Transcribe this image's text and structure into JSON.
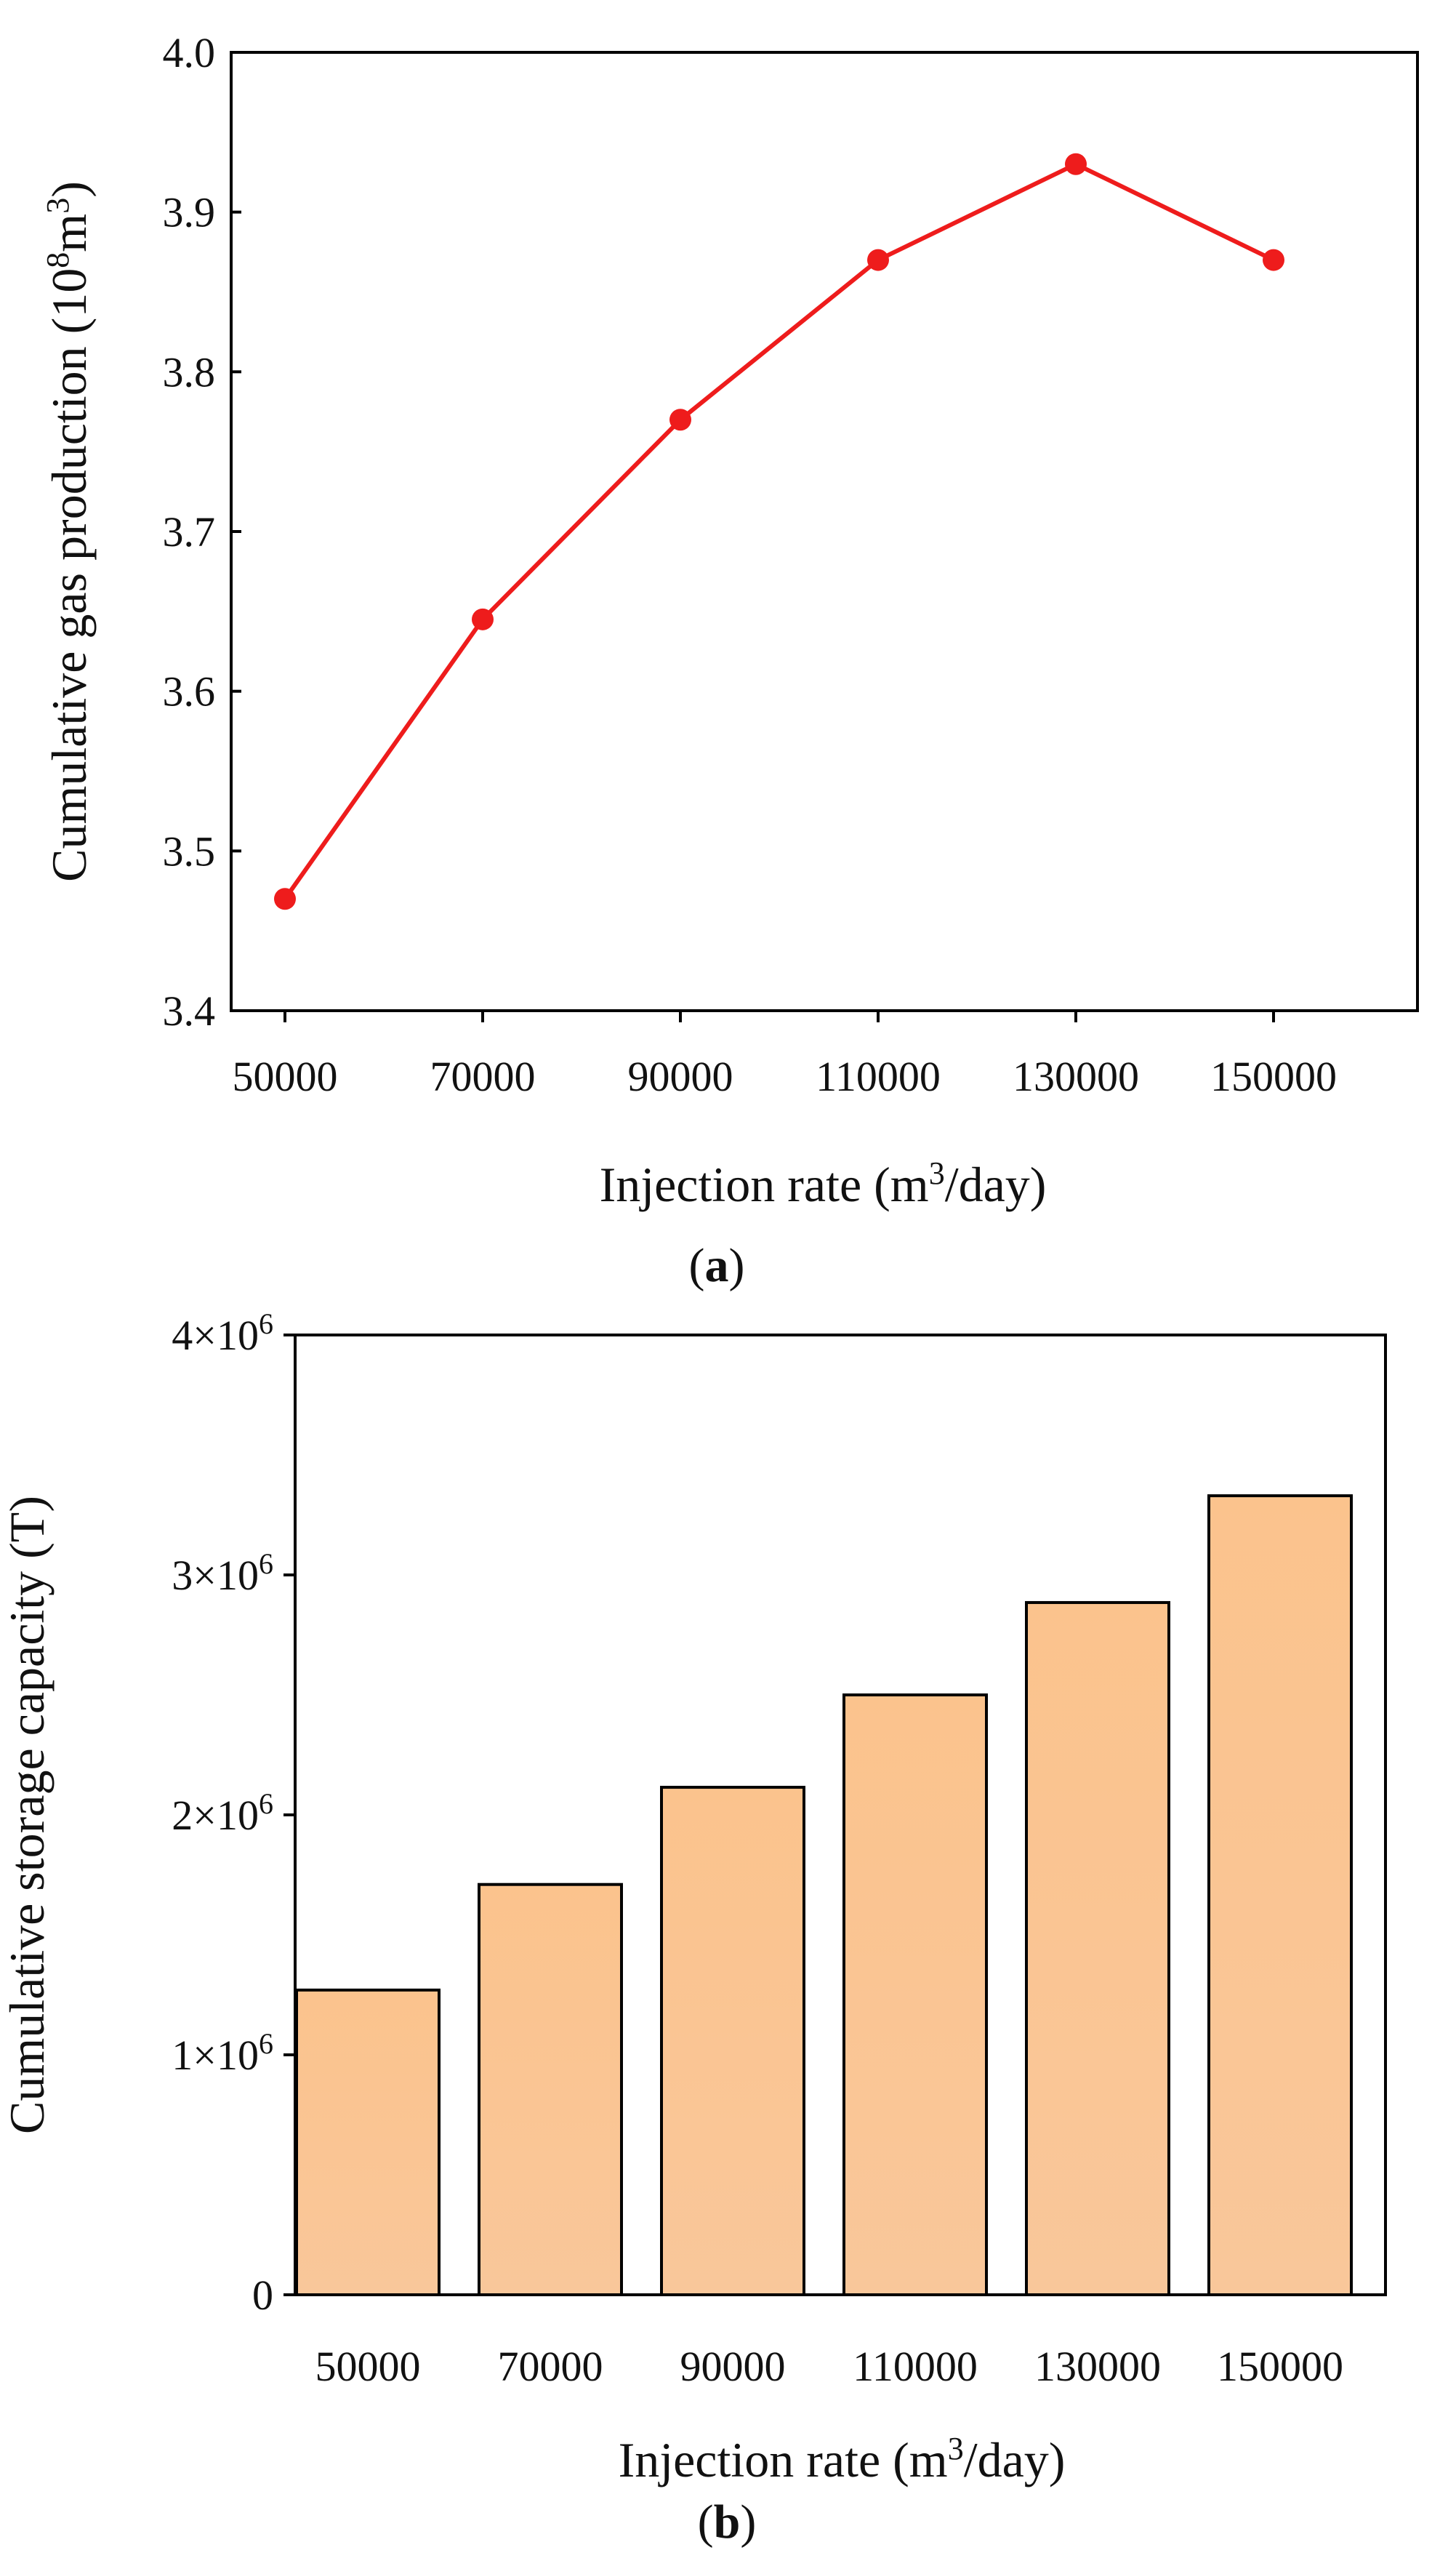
{
  "figure_labels": {
    "a": "a",
    "b": "b"
  },
  "chart_data": [
    {
      "id": "a",
      "type": "line",
      "title": "",
      "xlabel": {
        "main": "Injection rate (m",
        "sup": "3",
        "end": "/day)"
      },
      "ylabel": {
        "main": "Cumulative gas production (10",
        "sup1": "8",
        "mid": "m",
        "sup2": "3",
        "end": ")"
      },
      "categories": [
        "50000",
        "70000",
        "90000",
        "110000",
        "130000",
        "150000"
      ],
      "series": [
        {
          "name": "Cumulative gas production",
          "color": "#ee1c1c",
          "values": [
            3.47,
            3.645,
            3.77,
            3.87,
            3.93,
            3.87
          ]
        }
      ],
      "ylim": [
        3.4,
        4.0
      ],
      "yticks": [
        {
          "value": 3.4,
          "label": "3.4"
        },
        {
          "value": 3.5,
          "label": "3.5"
        },
        {
          "value": 3.6,
          "label": "3.6"
        },
        {
          "value": 3.7,
          "label": "3.7"
        },
        {
          "value": 3.8,
          "label": "3.8"
        },
        {
          "value": 3.9,
          "label": "3.9"
        },
        {
          "value": 4.0,
          "label": "4.0"
        }
      ],
      "grid": false,
      "legend": "none"
    },
    {
      "id": "b",
      "type": "bar",
      "title": "",
      "xlabel": {
        "main": "Injection rate (m",
        "sup": "3",
        "end": "/day)"
      },
      "ylabel": "Cumulative storage capacity (T)",
      "categories": [
        "50000",
        "70000",
        "90000",
        "110000",
        "130000",
        "150000"
      ],
      "series": [
        {
          "name": "Cumulative storage capacity",
          "color": "#fbc591",
          "values": [
            1270000,
            1710000,
            2115000,
            2500000,
            2885000,
            3330000
          ]
        }
      ],
      "ylim": [
        0,
        4000000
      ],
      "yticks": [
        {
          "value": 0,
          "label": "0"
        },
        {
          "value": 1000000,
          "label": "1×10",
          "exp": "6"
        },
        {
          "value": 2000000,
          "label": "2×10",
          "exp": "6"
        },
        {
          "value": 3000000,
          "label": "3×10",
          "exp": "6"
        },
        {
          "value": 4000000,
          "label": "4×10",
          "exp": "6"
        }
      ],
      "grid": false,
      "legend": "none"
    }
  ]
}
